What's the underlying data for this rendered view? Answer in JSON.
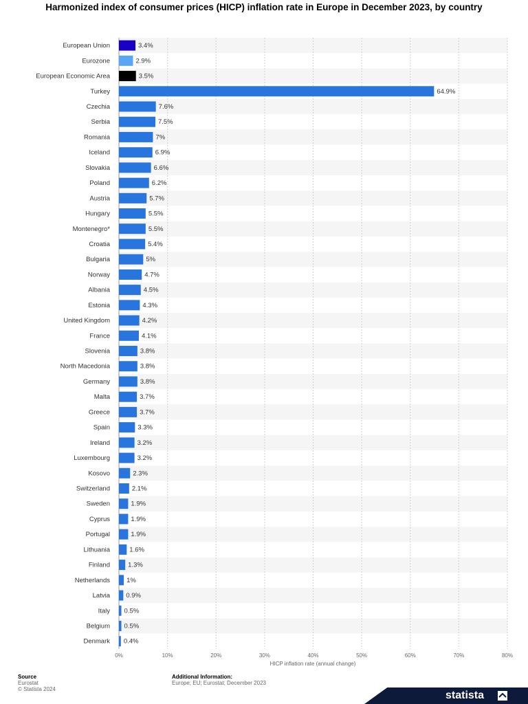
{
  "chart_data": {
    "type": "bar",
    "orientation": "horizontal",
    "title": "Harmonized index of consumer prices (HICP) inflation rate in Europe in December 2023, by country",
    "xlabel": "HICP inflation rate (annual change)",
    "xlim": [
      0,
      80
    ],
    "xticks": [
      "0%",
      "10%",
      "20%",
      "30%",
      "40%",
      "50%",
      "60%",
      "70%",
      "80%"
    ],
    "grid": true,
    "categories": [
      "European Union",
      "Eurozone",
      "European Economic Area",
      "Turkey",
      "Czechia",
      "Serbia",
      "Romania",
      "Iceland",
      "Slovakia",
      "Poland",
      "Austria",
      "Hungary",
      "Montenegro*",
      "Croatia",
      "Bulgaria",
      "Norway",
      "Albania",
      "Estonia",
      "United Kingdom",
      "France",
      "Slovenia",
      "North Macedonia",
      "Germany",
      "Malta",
      "Greece",
      "Spain",
      "Ireland",
      "Luxembourg",
      "Kosovo",
      "Switzerland",
      "Sweden",
      "Cyprus",
      "Portugal",
      "Lithuania",
      "Finland",
      "Netherlands",
      "Latvia",
      "Italy",
      "Belgium",
      "Denmark"
    ],
    "values": [
      3.4,
      2.9,
      3.5,
      64.9,
      7.6,
      7.5,
      7,
      6.9,
      6.6,
      6.2,
      5.7,
      5.5,
      5.5,
      5.4,
      5,
      4.7,
      4.5,
      4.3,
      4.2,
      4.1,
      3.8,
      3.8,
      3.8,
      3.7,
      3.7,
      3.3,
      3.2,
      3.2,
      2.3,
      2.1,
      1.9,
      1.9,
      1.9,
      1.6,
      1.3,
      1,
      0.9,
      0.5,
      0.5,
      0.4
    ],
    "value_labels": [
      "3.4%",
      "2.9%",
      "3.5%",
      "64.9%",
      "7.6%",
      "7.5%",
      "7%",
      "6.9%",
      "6.6%",
      "6.2%",
      "5.7%",
      "5.5%",
      "5.5%",
      "5.4%",
      "5%",
      "4.7%",
      "4.5%",
      "4.3%",
      "4.2%",
      "4.1%",
      "3.8%",
      "3.8%",
      "3.8%",
      "3.7%",
      "3.7%",
      "3.3%",
      "3.2%",
      "3.2%",
      "2.3%",
      "2.1%",
      "1.9%",
      "1.9%",
      "1.9%",
      "1.6%",
      "1.3%",
      "1%",
      "0.9%",
      "0.5%",
      "0.5%",
      "0.4%"
    ],
    "colors": [
      "#1a00c2",
      "#5aa6f5",
      "#000000",
      "#2876dd",
      "#2876dd",
      "#2876dd",
      "#2876dd",
      "#2876dd",
      "#2876dd",
      "#2876dd",
      "#2876dd",
      "#2876dd",
      "#2876dd",
      "#2876dd",
      "#2876dd",
      "#2876dd",
      "#2876dd",
      "#2876dd",
      "#2876dd",
      "#2876dd",
      "#2876dd",
      "#2876dd",
      "#2876dd",
      "#2876dd",
      "#2876dd",
      "#2876dd",
      "#2876dd",
      "#2876dd",
      "#2876dd",
      "#2876dd",
      "#2876dd",
      "#2876dd",
      "#2876dd",
      "#2876dd",
      "#2876dd",
      "#2876dd",
      "#2876dd",
      "#2876dd",
      "#2876dd",
      "#2876dd"
    ]
  },
  "footer": {
    "source_header": "Source",
    "source_name": "Eurostat",
    "copyright": "© Statista 2024",
    "info_header": "Additional Information:",
    "info_text": "Europe; EU; Eurostat; December 2023"
  },
  "brand": {
    "name": "statista",
    "icon": "statista-logo-icon"
  }
}
